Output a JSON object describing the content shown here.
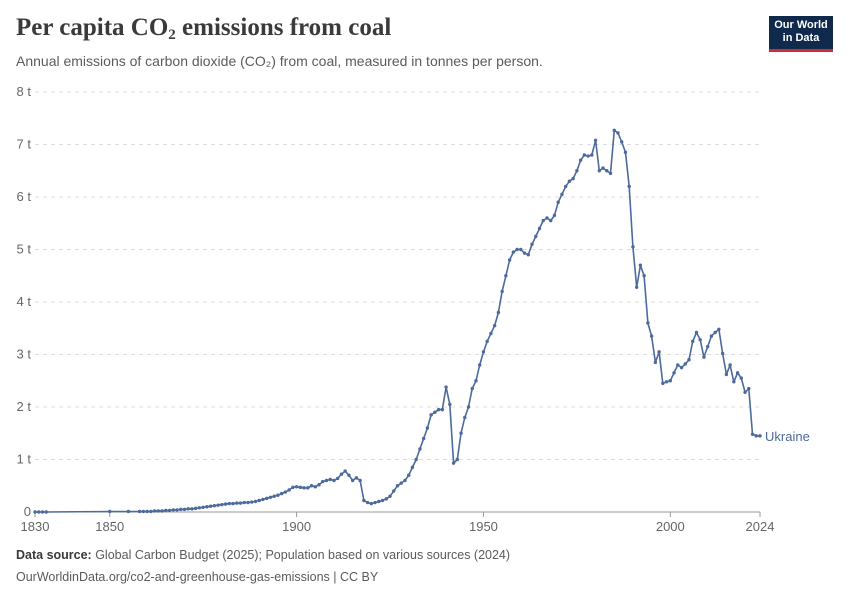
{
  "header": {
    "title_pre": "Per capita CO",
    "title_sub": "2",
    "title_post": " emissions from coal",
    "subtitle": "Annual emissions of carbon dioxide (CO₂) from coal, measured in tonnes per person."
  },
  "logo": {
    "line1": "Our World",
    "line2": "in Data"
  },
  "footer": {
    "source_label": "Data source:",
    "source_text": " Global Carbon Budget (2025); Population based on various sources (2024)",
    "url": "OurWorldinData.org/co2-and-greenhouse-gas-emissions | CC BY"
  },
  "colors": {
    "series": "#4c6a9c",
    "grid": "#dddddd",
    "text": "#666666"
  },
  "chart_data": {
    "type": "line",
    "title": "Per capita CO₂ emissions from coal",
    "subtitle": "Annual emissions of carbon dioxide (CO₂) from coal, measured in tonnes per person.",
    "xlabel": "",
    "ylabel": "",
    "xlim": [
      1830,
      2024
    ],
    "ylim": [
      0,
      8
    ],
    "x_ticks": [
      1830,
      1850,
      1900,
      1950,
      2000,
      2024
    ],
    "y_ticks": [
      0,
      1,
      2,
      3,
      4,
      5,
      6,
      7,
      8
    ],
    "y_tick_labels": [
      "0",
      "1 t",
      "2 t",
      "3 t",
      "4 t",
      "5 t",
      "6 t",
      "7 t",
      "8 t"
    ],
    "grid": "horizontal-dashed",
    "legend": "inline label at line end",
    "series": [
      {
        "name": "Ukraine",
        "x": [
          1830,
          1831,
          1832,
          1833,
          1850,
          1855,
          1858,
          1859,
          1860,
          1861,
          1862,
          1863,
          1864,
          1865,
          1866,
          1867,
          1868,
          1869,
          1870,
          1871,
          1872,
          1873,
          1874,
          1875,
          1876,
          1877,
          1878,
          1879,
          1880,
          1881,
          1882,
          1883,
          1884,
          1885,
          1886,
          1887,
          1888,
          1889,
          1890,
          1891,
          1892,
          1893,
          1894,
          1895,
          1896,
          1897,
          1898,
          1899,
          1900,
          1901,
          1902,
          1903,
          1904,
          1905,
          1906,
          1907,
          1908,
          1909,
          1910,
          1911,
          1912,
          1913,
          1914,
          1915,
          1916,
          1917,
          1918,
          1919,
          1920,
          1921,
          1922,
          1923,
          1924,
          1925,
          1926,
          1927,
          1928,
          1929,
          1930,
          1931,
          1932,
          1933,
          1934,
          1935,
          1936,
          1937,
          1938,
          1939,
          1940,
          1941,
          1942,
          1943,
          1944,
          1945,
          1946,
          1947,
          1948,
          1949,
          1950,
          1951,
          1952,
          1953,
          1954,
          1955,
          1956,
          1957,
          1958,
          1959,
          1960,
          1961,
          1962,
          1963,
          1964,
          1965,
          1966,
          1967,
          1968,
          1969,
          1970,
          1971,
          1972,
          1973,
          1974,
          1975,
          1976,
          1977,
          1978,
          1979,
          1980,
          1981,
          1982,
          1983,
          1984,
          1985,
          1986,
          1987,
          1988,
          1989,
          1990,
          1991,
          1992,
          1993,
          1994,
          1995,
          1996,
          1997,
          1998,
          1999,
          2000,
          2001,
          2002,
          2003,
          2004,
          2005,
          2006,
          2007,
          2008,
          2009,
          2010,
          2011,
          2012,
          2013,
          2014,
          2015,
          2016,
          2017,
          2018,
          2019,
          2020,
          2021,
          2022,
          2023,
          2024
        ],
        "values": [
          0,
          0,
          0,
          0,
          0.01,
          0.01,
          0.01,
          0.01,
          0.01,
          0.01,
          0.02,
          0.02,
          0.02,
          0.03,
          0.03,
          0.04,
          0.04,
          0.05,
          0.05,
          0.06,
          0.06,
          0.07,
          0.08,
          0.09,
          0.1,
          0.11,
          0.12,
          0.13,
          0.14,
          0.15,
          0.16,
          0.16,
          0.17,
          0.17,
          0.18,
          0.18,
          0.19,
          0.2,
          0.22,
          0.24,
          0.26,
          0.28,
          0.3,
          0.32,
          0.35,
          0.38,
          0.42,
          0.47,
          0.48,
          0.47,
          0.46,
          0.46,
          0.5,
          0.48,
          0.52,
          0.58,
          0.6,
          0.62,
          0.6,
          0.64,
          0.72,
          0.78,
          0.7,
          0.6,
          0.65,
          0.6,
          0.22,
          0.18,
          0.16,
          0.18,
          0.2,
          0.22,
          0.25,
          0.3,
          0.4,
          0.5,
          0.55,
          0.6,
          0.7,
          0.85,
          1,
          1.2,
          1.4,
          1.6,
          1.85,
          1.9,
          1.95,
          1.95,
          2.38,
          2.05,
          0.93,
          1.0,
          1.5,
          1.8,
          2.0,
          2.35,
          2.5,
          2.8,
          3.05,
          3.25,
          3.4,
          3.55,
          3.8,
          4.2,
          4.5,
          4.8,
          4.95,
          5.0,
          5.0,
          4.93,
          4.9,
          5.1,
          5.25,
          5.4,
          5.55,
          5.6,
          5.55,
          5.65,
          5.9,
          6.05,
          6.2,
          6.3,
          6.35,
          6.5,
          6.7,
          6.8,
          6.78,
          6.8,
          7.08,
          6.5,
          6.55,
          6.5,
          6.45,
          7.27,
          7.22,
          7.05,
          6.85,
          6.2,
          5.05,
          4.28,
          4.7,
          4.5,
          3.6,
          3.35,
          2.85,
          3.05,
          2.45,
          2.48,
          2.5,
          2.65,
          2.8,
          2.75,
          2.82,
          2.9,
          3.25,
          3.42,
          3.28,
          2.95,
          3.15,
          3.35,
          3.42,
          3.48,
          3.02,
          2.62,
          2.8,
          2.48,
          2.65,
          2.55,
          2.28,
          2.35,
          1.48,
          1.45,
          1.45
        ]
      }
    ]
  }
}
